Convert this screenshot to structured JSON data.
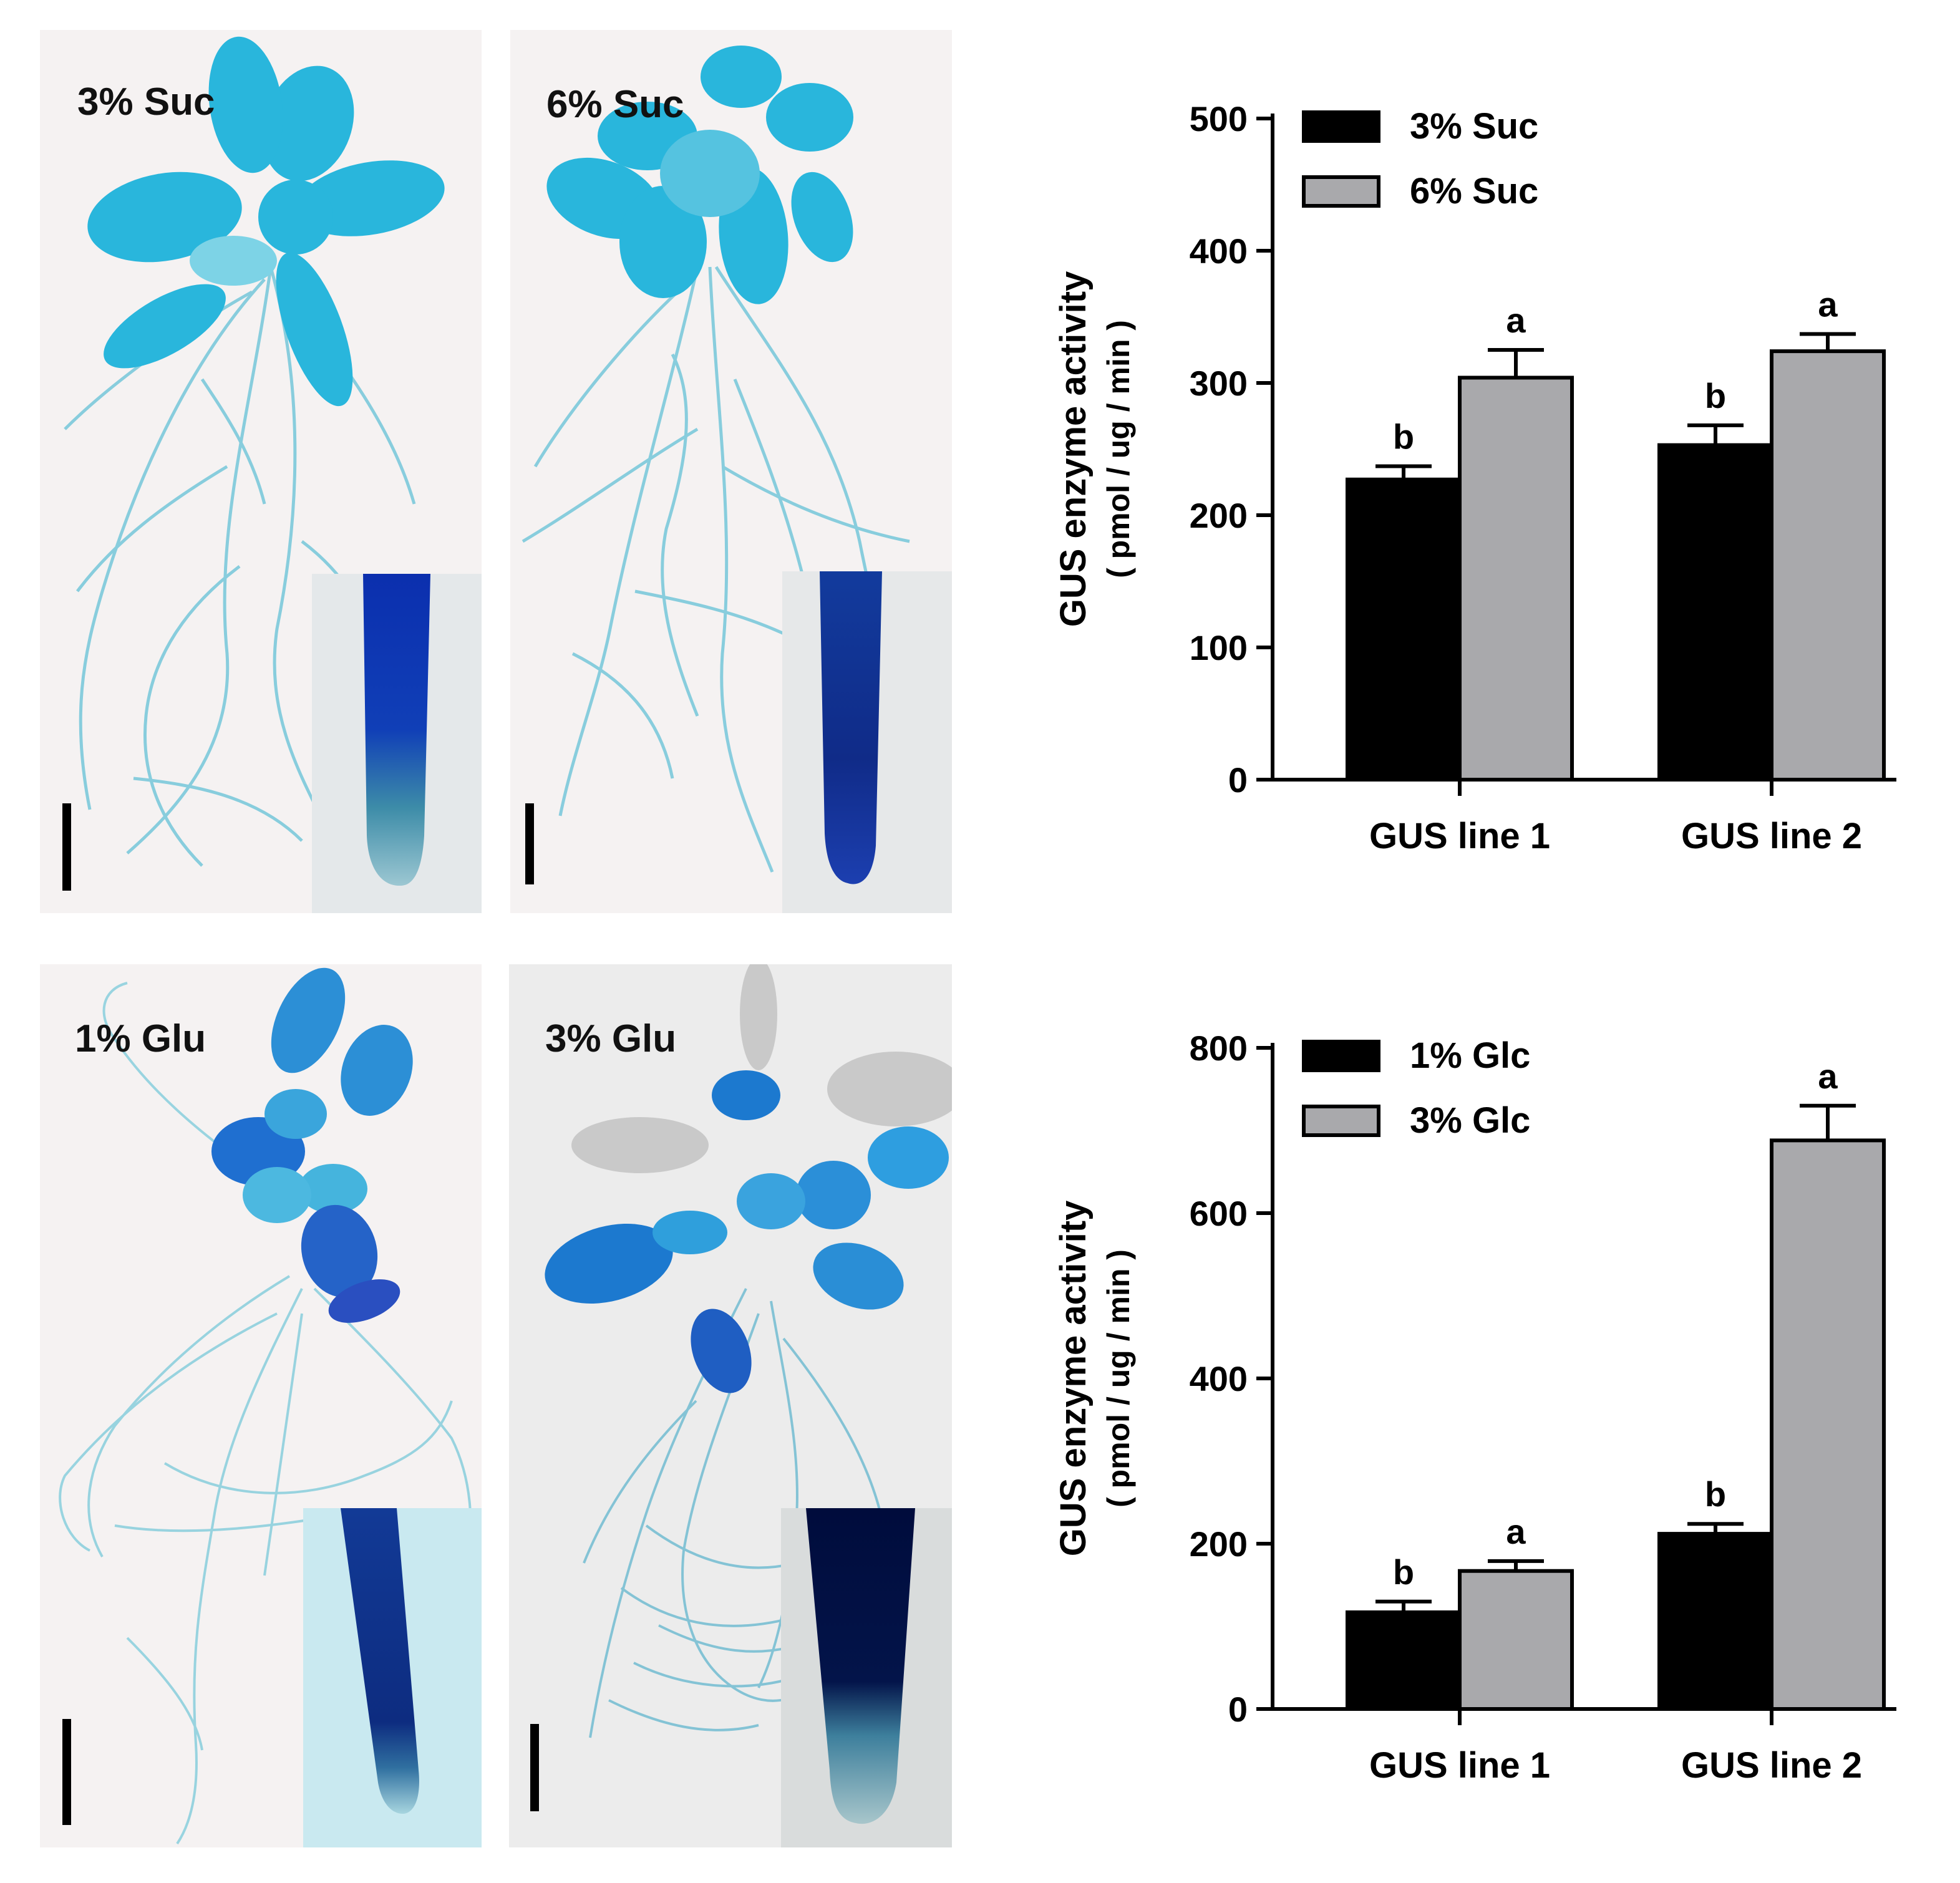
{
  "photos": [
    {
      "label": "3% Suc"
    },
    {
      "label": "6% Suc"
    },
    {
      "label": "1% Glu"
    },
    {
      "label": "3% Glu"
    }
  ],
  "colors": {
    "black_bar": "#000000",
    "gray_bar": "#a9a9ac",
    "stain_light": "#27b4d9",
    "stain_dark": "#0a3ea8",
    "root": "#6ec5d8"
  },
  "chart_data": [
    {
      "type": "bar",
      "categories": [
        "GUS line 1",
        "GUS line 2"
      ],
      "ylabel": "GUS enzyme activity",
      "ylabel_units": "( pmol / ug / min )",
      "ylim": [
        0,
        500
      ],
      "yticks": [
        0,
        100,
        200,
        300,
        400,
        500
      ],
      "legend": "top-left",
      "series": [
        {
          "name": "3% Suc",
          "values": [
            227,
            253
          ],
          "errors": [
            10,
            15
          ],
          "letters": [
            "b",
            "b"
          ],
          "color": "#000000"
        },
        {
          "name": "6% Suc",
          "values": [
            304,
            324
          ],
          "errors": [
            21,
            13
          ],
          "letters": [
            "a",
            "a"
          ],
          "color": "#a9a9ac"
        }
      ]
    },
    {
      "type": "bar",
      "categories": [
        "GUS line 1",
        "GUS line 2"
      ],
      "ylabel": "GUS enzyme activity",
      "ylabel_units": "( pmol / ug / min )",
      "ylim": [
        0,
        800
      ],
      "yticks": [
        0,
        200,
        400,
        600,
        800
      ],
      "legend": "top-left",
      "series": [
        {
          "name": "1% Glc",
          "values": [
            117,
            212
          ],
          "errors": [
            13,
            12
          ],
          "letters": [
            "b",
            "b"
          ],
          "color": "#000000"
        },
        {
          "name": "3% Glc",
          "values": [
            167,
            688
          ],
          "errors": [
            12,
            42
          ],
          "letters": [
            "a",
            "a"
          ],
          "color": "#a9a9ac"
        }
      ]
    }
  ]
}
